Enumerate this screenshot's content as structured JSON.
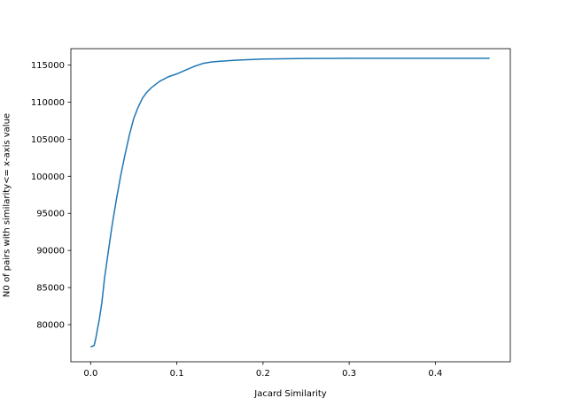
{
  "chart_data": {
    "type": "line",
    "title": "",
    "xlabel": "Jacard Similarity",
    "ylabel": "N0 of pairs with similarity<= x-axis value",
    "xlim": [
      -0.023,
      0.487
    ],
    "ylim": [
      75000,
      117200
    ],
    "xticks": [
      0.0,
      0.1,
      0.2,
      0.3,
      0.4
    ],
    "xtick_labels": [
      "0.0",
      "0.1",
      "0.2",
      "0.3",
      "0.4"
    ],
    "yticks": [
      80000,
      85000,
      90000,
      95000,
      100000,
      105000,
      110000,
      115000
    ],
    "ytick_labels": [
      "80000",
      "85000",
      "90000",
      "95000",
      "100000",
      "105000",
      "110000",
      "115000"
    ],
    "grid": false,
    "legend": "none",
    "line_color": "#1f77b4",
    "series": [
      {
        "x": [
          0.0,
          0.004,
          0.006,
          0.008,
          0.01,
          0.013,
          0.016,
          0.02,
          0.025,
          0.03,
          0.035,
          0.04,
          0.045,
          0.05,
          0.055,
          0.06,
          0.065,
          0.07,
          0.08,
          0.09,
          0.1,
          0.11,
          0.12,
          0.13,
          0.14,
          0.15,
          0.17,
          0.2,
          0.25,
          0.3,
          0.4,
          0.463
        ],
        "y": [
          77000,
          77200,
          78200,
          79500,
          80700,
          83000,
          86200,
          89500,
          93500,
          97000,
          100200,
          103000,
          105600,
          107800,
          109300,
          110500,
          111300,
          111900,
          112800,
          113400,
          113800,
          114300,
          114800,
          115200,
          115400,
          115500,
          115650,
          115800,
          115870,
          115900,
          115910,
          115910
        ]
      }
    ]
  }
}
